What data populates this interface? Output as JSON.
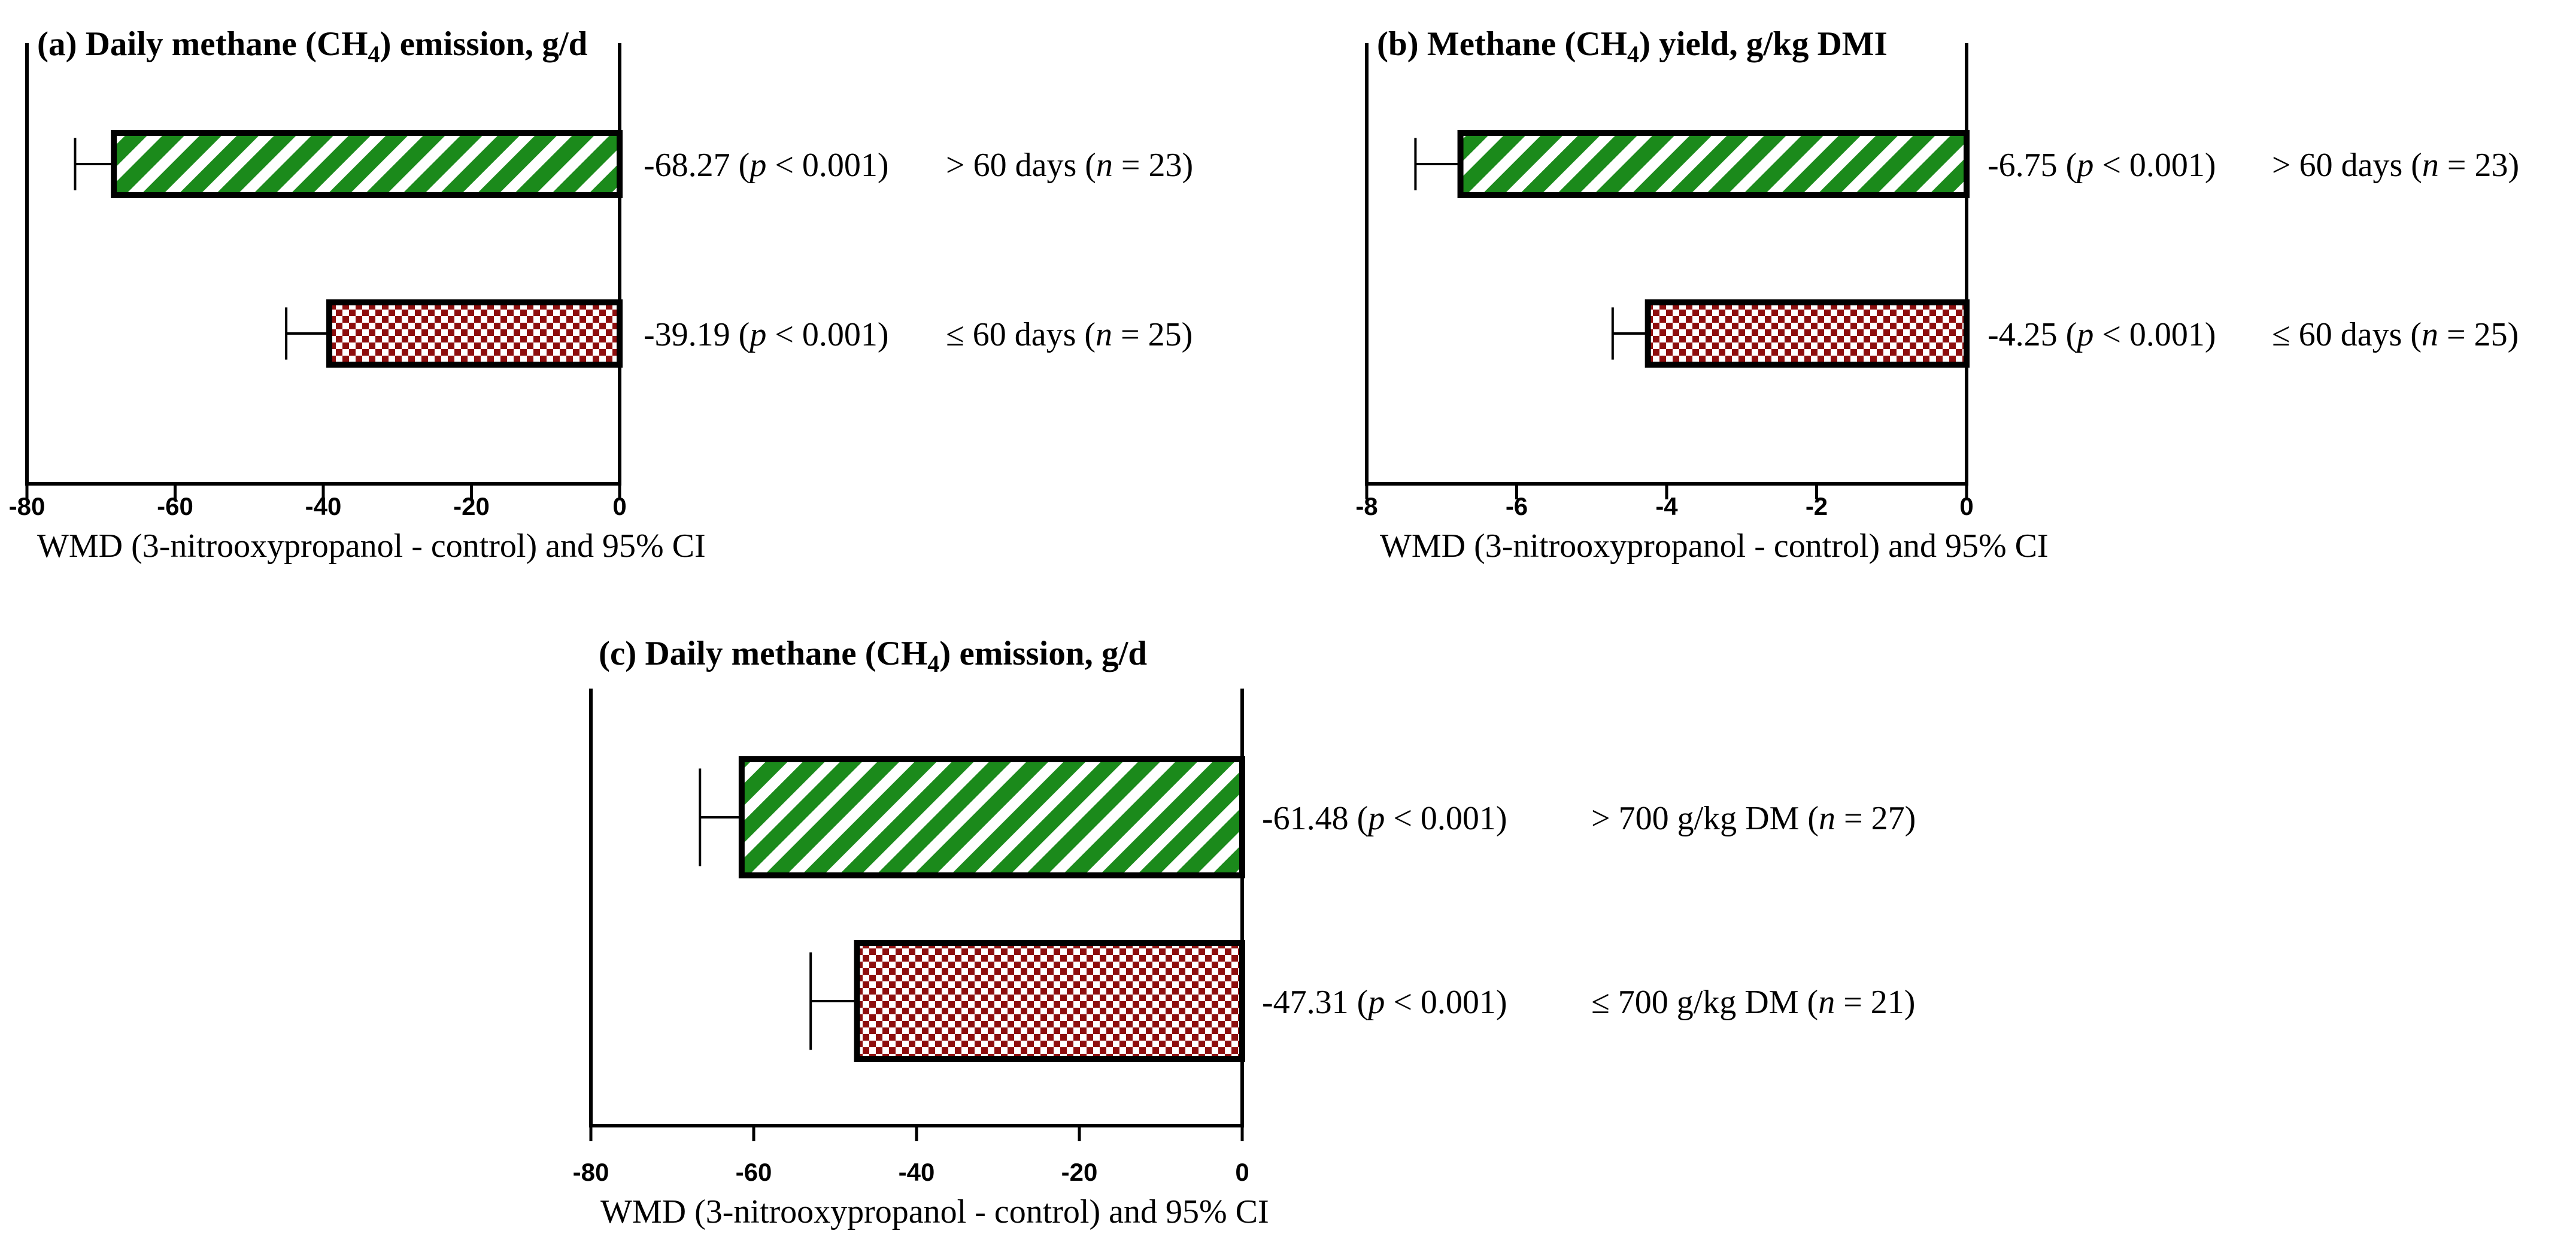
{
  "colors": {
    "green": "#1b8a1b",
    "red": "#8e0e0e",
    "white": "#ffffff",
    "black": "#000000"
  },
  "chart_data": [
    {
      "type": "bar",
      "orientation": "horizontal",
      "title": "(a) Daily methane (CH4) emission, g/d",
      "title_parts": {
        "pre": "(a) Daily methane (CH",
        "sub": "4",
        "post": ") emission, g/d"
      },
      "xlabel": "WMD (3-nitrooxypropanol - control) and 95% CI",
      "xlim": [
        -80,
        0
      ],
      "xticks": [
        -80,
        -60,
        -40,
        -20,
        0
      ],
      "tick_labels": [
        "-80",
        "-60",
        "-40",
        "-20",
        "0"
      ],
      "bars": [
        {
          "category": "> 60 days",
          "value": -68.27,
          "ci_lower": -73.5,
          "pattern": "stripes",
          "value_label": "-68.27",
          "p_label": "p",
          "p_text": " < 0.001)",
          "group_label": "> 60 days",
          "n_label": "n",
          "n_text": " = 23)"
        },
        {
          "category": "≤ 60 days",
          "value": -39.19,
          "ci_lower": -45.0,
          "pattern": "checker",
          "value_label": "-39.19",
          "p_label": "p",
          "p_text": " < 0.001)",
          "group_label": "≤ 60 days",
          "n_label": "n",
          "n_text": " = 25)"
        }
      ]
    },
    {
      "type": "bar",
      "orientation": "horizontal",
      "title": "(b) Methane (CH4) yield, g/kg DMI",
      "title_parts": {
        "pre": "(b) Methane (CH",
        "sub": "4",
        "post": ") yield, g/kg DMI"
      },
      "xlabel": "WMD (3-nitrooxypropanol - control) and 95% CI",
      "xlim": [
        -8,
        0
      ],
      "xticks": [
        -8,
        -6,
        -4,
        -2,
        0
      ],
      "tick_labels": [
        "-8",
        "-6",
        "-4",
        "-2",
        "0"
      ],
      "bars": [
        {
          "category": "> 60 days",
          "value": -6.75,
          "ci_lower": -7.35,
          "pattern": "stripes",
          "value_label": "-6.75",
          "p_label": "p",
          "p_text": " < 0.001)",
          "group_label": "> 60 days",
          "n_label": "n",
          "n_text": " = 23)"
        },
        {
          "category": "≤ 60 days",
          "value": -4.25,
          "ci_lower": -4.72,
          "pattern": "checker",
          "value_label": "-4.25",
          "p_label": "p",
          "p_text": " < 0.001)",
          "group_label": "≤ 60 days",
          "n_label": "n",
          "n_text": " = 25)"
        }
      ]
    },
    {
      "type": "bar",
      "orientation": "horizontal",
      "title": "(c) Daily methane (CH4) emission, g/d",
      "title_parts": {
        "pre": "(c) Daily methane (CH",
        "sub": "4",
        "post": ") emission, g/d"
      },
      "xlabel": "WMD (3-nitrooxypropanol - control) and 95% CI",
      "xlim": [
        -80,
        0
      ],
      "xticks": [
        -80,
        -60,
        -40,
        -20,
        0
      ],
      "tick_labels": [
        "-80",
        "-60",
        "-40",
        "-20",
        "0"
      ],
      "bars": [
        {
          "category": "> 700 g/kg DM",
          "value": -61.48,
          "ci_lower": -66.6,
          "pattern": "stripes",
          "value_label": "-61.48",
          "p_label": "p",
          "p_text": " < 0.001)",
          "group_label": "> 700 g/kg DM",
          "n_label": "n",
          "n_text": " = 27)"
        },
        {
          "category": "≤ 700 g/kg DM",
          "value": -47.31,
          "ci_lower": -53.0,
          "pattern": "checker",
          "value_label": "-47.31",
          "p_label": "p",
          "p_text": " < 0.001)",
          "group_label": "≤ 700 g/kg DM",
          "n_label": "n",
          "n_text": " = 21)"
        }
      ]
    }
  ]
}
